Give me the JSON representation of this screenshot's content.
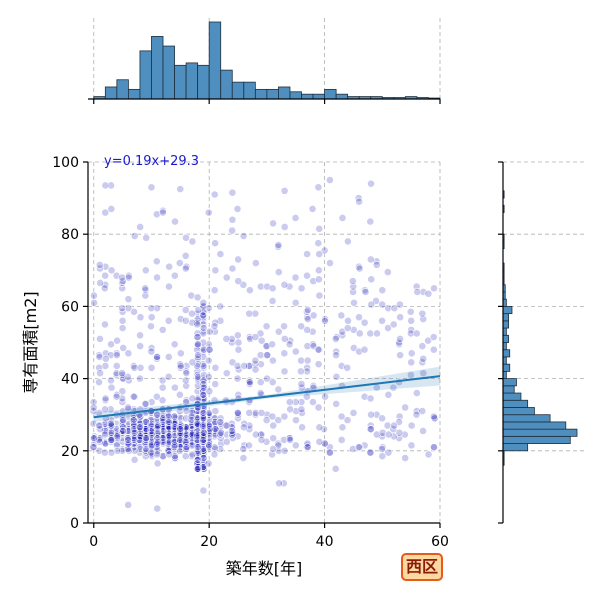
{
  "chart_data": [
    {
      "type": "scatter",
      "xlabel": "築年数[年]",
      "ylabel": "専有面積[m2]",
      "xlim": [
        -1,
        60
      ],
      "ylim": [
        0,
        100
      ],
      "xticks": [
        "0",
        "20",
        "40",
        "60"
      ],
      "yticks": [
        "0",
        "20",
        "40",
        "60",
        "80",
        "100"
      ],
      "grid": true,
      "annotation": "y=0.19x+29.3",
      "regression": {
        "slope": 0.19,
        "intercept": 29.3,
        "x_range": [
          0,
          60
        ]
      },
      "point_color": "#1414b4",
      "line_color": "#1f77b4",
      "clusters": [
        {
          "x_range": [
            0,
            25
          ],
          "y_range": [
            18,
            32
          ],
          "count": 520
        },
        {
          "x_range": [
            17,
            20
          ],
          "y_range": [
            15,
            60
          ],
          "count": 160
        },
        {
          "x_range": [
            0,
            60
          ],
          "y_range": [
            10,
            70
          ],
          "count": 520
        },
        {
          "x_range": [
            0,
            50
          ],
          "y_range": [
            70,
            95
          ],
          "count": 55
        }
      ],
      "points": [
        [
          2,
          65
        ],
        [
          10,
          93
        ],
        [
          12,
          86
        ],
        [
          24,
          84
        ],
        [
          41,
          95
        ],
        [
          48,
          94
        ],
        [
          46,
          89
        ],
        [
          9,
          79
        ],
        [
          30,
          40
        ],
        [
          33,
          11
        ],
        [
          32,
          11
        ],
        [
          19,
          9
        ],
        [
          11,
          4
        ],
        [
          6,
          5
        ],
        [
          42,
          15
        ],
        [
          0,
          61
        ]
      ]
    },
    {
      "type": "bar",
      "orientation": "vertical",
      "bin_edges": [
        0,
        2,
        4,
        6,
        8,
        10,
        12,
        14,
        16,
        18,
        20,
        22,
        24,
        26,
        28,
        30,
        32,
        34,
        36,
        38,
        40,
        42,
        44,
        46,
        48,
        50,
        52,
        54,
        56,
        58,
        60
      ],
      "values": [
        5,
        25,
        40,
        20,
        100,
        130,
        110,
        70,
        75,
        70,
        160,
        60,
        35,
        35,
        20,
        20,
        25,
        15,
        10,
        10,
        20,
        10,
        5,
        5,
        5,
        3,
        3,
        5,
        3,
        2
      ]
    },
    {
      "type": "bar",
      "orientation": "horizontal",
      "bin_edges": [
        0,
        2,
        4,
        6,
        8,
        10,
        12,
        14,
        16,
        18,
        20,
        22,
        24,
        26,
        28,
        30,
        32,
        34,
        36,
        38,
        40,
        42,
        44,
        46,
        48,
        50,
        52,
        54,
        56,
        58,
        60,
        62,
        64,
        66,
        68,
        70,
        72,
        74,
        76,
        78,
        80,
        82,
        84,
        86,
        88,
        90,
        92,
        94,
        96,
        98,
        100
      ],
      "values": [
        0,
        0,
        0,
        0,
        0,
        0,
        0,
        0,
        1,
        1,
        22,
        60,
        66,
        56,
        42,
        28,
        22,
        16,
        10,
        12,
        3,
        6,
        3,
        6,
        3,
        5,
        3,
        5,
        5,
        8,
        3,
        2,
        2,
        1,
        1,
        1,
        0,
        0,
        1,
        1,
        0,
        0,
        0,
        1,
        0,
        1,
        0,
        0,
        0,
        0
      ]
    }
  ],
  "district_badge": "西区"
}
